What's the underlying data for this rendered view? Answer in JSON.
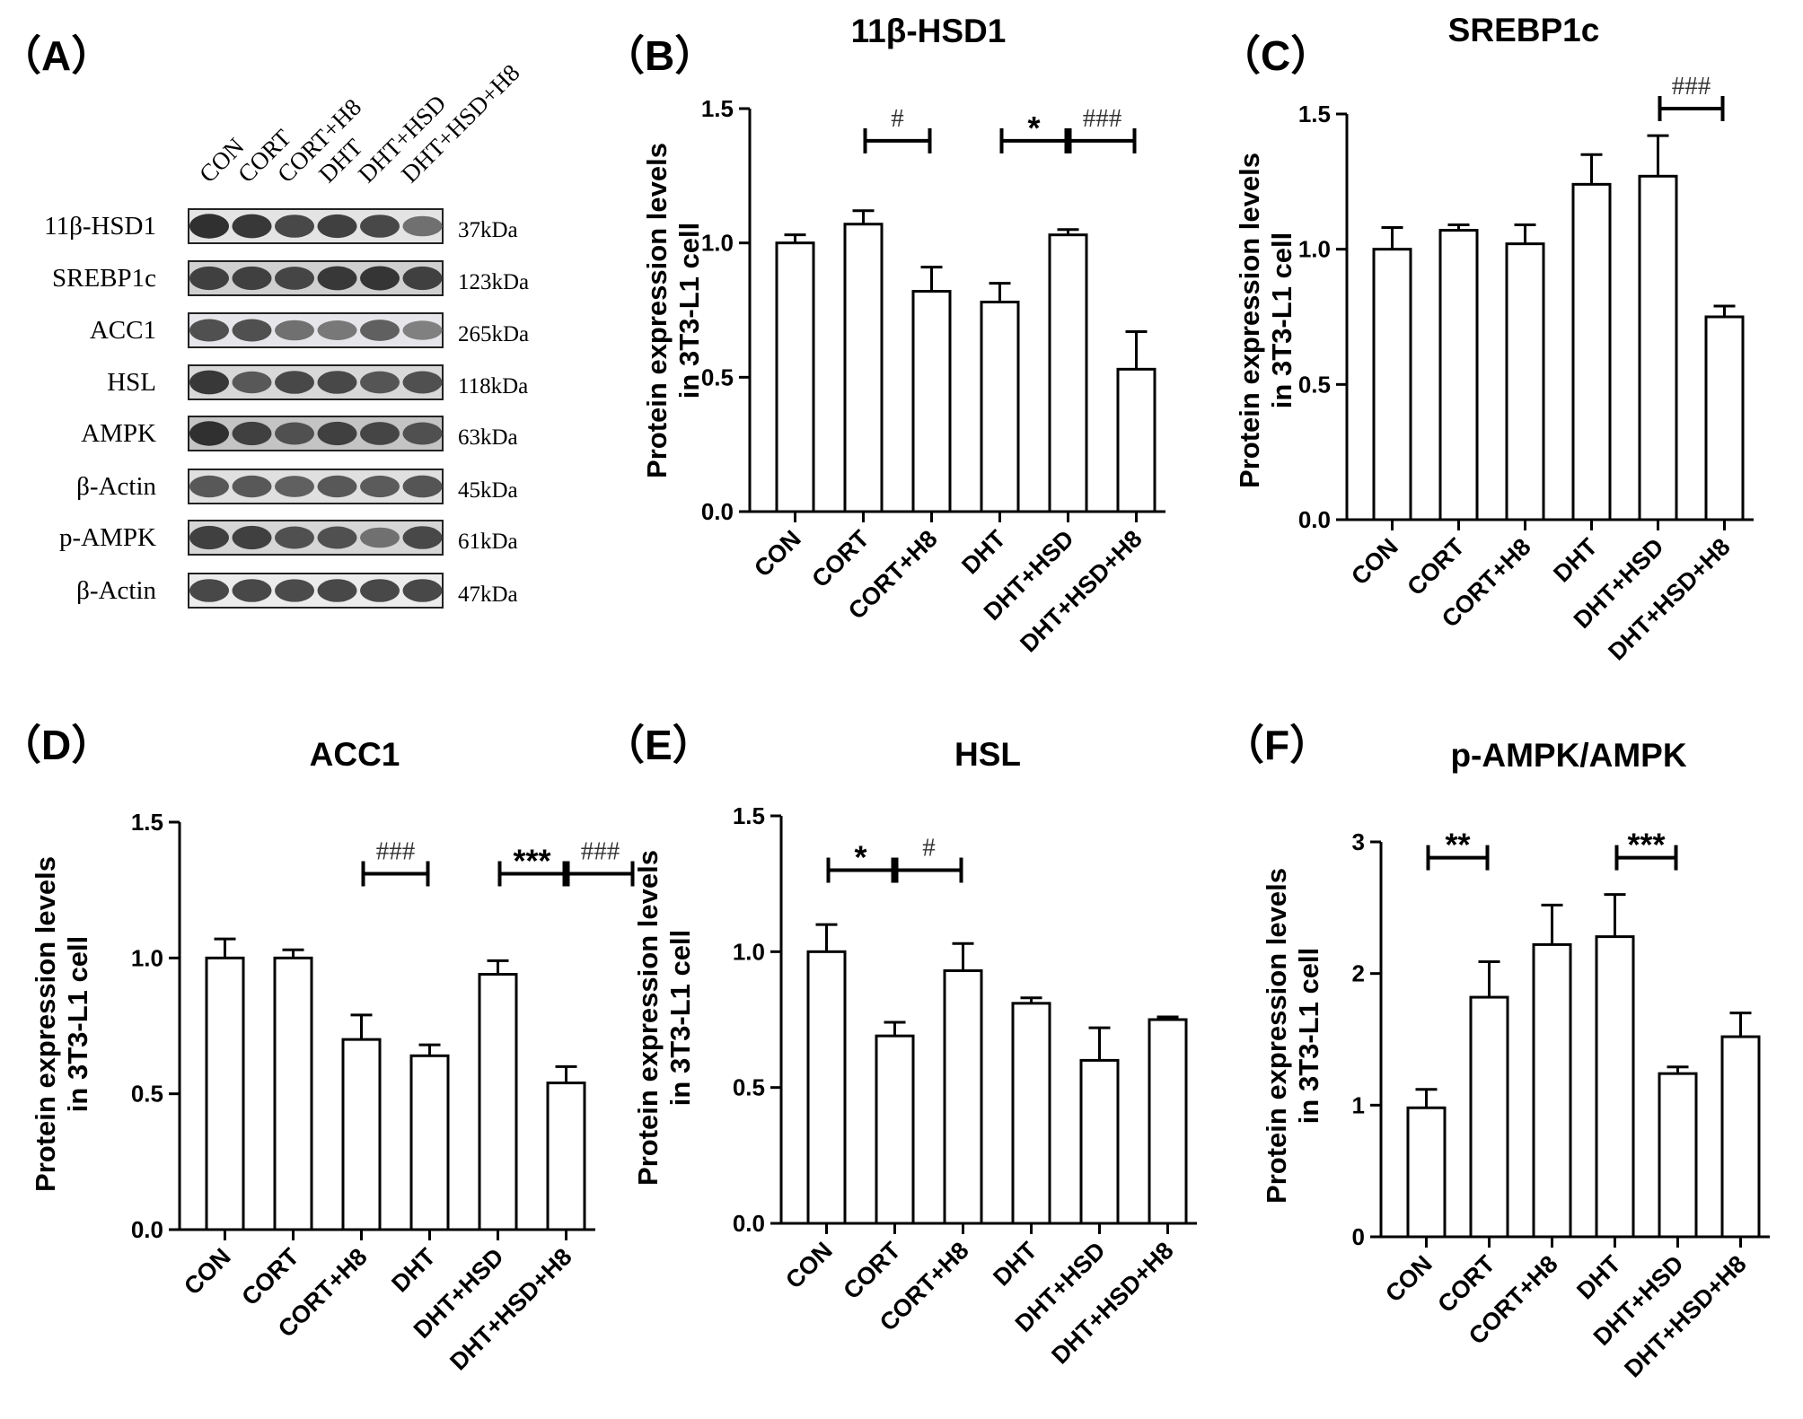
{
  "figure": {
    "panel_labels": [
      "（A）",
      "（B）",
      "（C）",
      "（D）",
      "（E）",
      "（F）"
    ]
  },
  "western_blot": {
    "lanes": [
      "CON",
      "CORT",
      "CORT+H8",
      "DHT",
      "DHT+HSD",
      "DHT+HSD+H8"
    ],
    "rows": [
      {
        "protein": "11β-HSD1",
        "size": "37kDa",
        "intensities": [
          0.95,
          0.9,
          0.8,
          0.85,
          0.8,
          0.55
        ],
        "background": "#e4e4e4"
      },
      {
        "protein": "SREBP1c",
        "size": "123kDa",
        "intensities": [
          0.85,
          0.85,
          0.82,
          0.9,
          0.92,
          0.85
        ],
        "background": "#d0d0d0"
      },
      {
        "protein": "ACC1",
        "size": "265kDa",
        "intensities": [
          0.75,
          0.75,
          0.55,
          0.5,
          0.65,
          0.45
        ],
        "background": "#e6e6ea"
      },
      {
        "protein": "HSL",
        "size": "118kDa",
        "intensities": [
          0.9,
          0.7,
          0.8,
          0.8,
          0.72,
          0.75
        ],
        "background": "#d8d8d8"
      },
      {
        "protein": "AMPK",
        "size": "63kDa",
        "intensities": [
          0.95,
          0.85,
          0.75,
          0.85,
          0.82,
          0.75
        ],
        "background": "#c4c4c4"
      },
      {
        "protein": "β-Actin",
        "size": "45kDa",
        "intensities": [
          0.7,
          0.7,
          0.65,
          0.7,
          0.68,
          0.72
        ],
        "background": "#e0e0e0"
      },
      {
        "protein": "p-AMPK",
        "size": "61kDa",
        "intensities": [
          0.85,
          0.85,
          0.75,
          0.75,
          0.55,
          0.8
        ],
        "background": "#d6d6d6"
      },
      {
        "protein": "β-Actin",
        "size": "47kDa",
        "intensities": [
          0.8,
          0.8,
          0.78,
          0.8,
          0.8,
          0.8
        ],
        "background": "#ececec"
      }
    ]
  },
  "chart_data": [
    {
      "type": "bar",
      "panel": "（B）",
      "title": "11β-HSD1",
      "ylabel": [
        "Protein expression levels",
        "in 3T3-L1 cell"
      ],
      "categories": [
        "CON",
        "CORT",
        "CORT+H8",
        "DHT",
        "DHT+HSD",
        "DHT+HSD+H8"
      ],
      "values": [
        1.0,
        1.07,
        0.82,
        0.78,
        1.03,
        0.53
      ],
      "errors": [
        0.03,
        0.05,
        0.09,
        0.07,
        0.02,
        0.14
      ],
      "ylim": [
        0,
        1.5
      ],
      "yticks": [
        "0.0",
        "0.5",
        "1.0",
        "1.5"
      ],
      "significance": [
        {
          "from": 1,
          "to": 2,
          "label": "#",
          "y": 1.38
        },
        {
          "from": 3,
          "to": 4,
          "label": "*",
          "y": 1.38
        },
        {
          "from": 4,
          "to": 5,
          "label": "###",
          "y": 1.38
        }
      ]
    },
    {
      "type": "bar",
      "panel": "（C）",
      "title": "SREBP1c",
      "ylabel": [
        "Protein expression levels",
        "in 3T3-L1 cell"
      ],
      "categories": [
        "CON",
        "CORT",
        "CORT+H8",
        "DHT",
        "DHT+HSD",
        "DHT+HSD+H8"
      ],
      "values": [
        1.0,
        1.07,
        1.02,
        1.24,
        1.27,
        0.75
      ],
      "errors": [
        0.08,
        0.02,
        0.07,
        0.11,
        0.15,
        0.04
      ],
      "ylim": [
        0,
        1.5
      ],
      "yticks": [
        "0.0",
        "0.5",
        "1.0",
        "1.5"
      ],
      "significance": [
        {
          "from": 4,
          "to": 5,
          "label": "###",
          "y": 1.52
        }
      ]
    },
    {
      "type": "bar",
      "panel": "（D）",
      "title": "ACC1",
      "ylabel": [
        "Protein expression levels",
        "in 3T3-L1 cell"
      ],
      "categories": [
        "CON",
        "CORT",
        "CORT+H8",
        "DHT",
        "DHT+HSD",
        "DHT+HSD+H8"
      ],
      "values": [
        1.0,
        1.0,
        0.7,
        0.64,
        0.94,
        0.54
      ],
      "errors": [
        0.07,
        0.03,
        0.09,
        0.04,
        0.05,
        0.06
      ],
      "ylim": [
        0,
        1.5
      ],
      "yticks": [
        "0.0",
        "0.5",
        "1.0",
        "1.5"
      ],
      "significance": [
        {
          "from": 2,
          "to": 3,
          "label": "###",
          "y": 1.31
        },
        {
          "from": 4,
          "to": 5,
          "label": "***",
          "y": 1.31
        },
        {
          "from": 5,
          "to": 6,
          "label": "###",
          "y": 1.31
        }
      ]
    },
    {
      "type": "bar",
      "panel": "（E）",
      "title": "HSL",
      "ylabel": [
        "Protein expression levels",
        "in 3T3-L1 cell"
      ],
      "categories": [
        "CON",
        "CORT",
        "CORT+H8",
        "DHT",
        "DHT+HSD",
        "DHT+HSD+H8"
      ],
      "values": [
        1.0,
        0.69,
        0.93,
        0.81,
        0.6,
        0.75
      ],
      "errors": [
        0.1,
        0.05,
        0.1,
        0.02,
        0.12,
        0.01
      ],
      "ylim": [
        0,
        1.5
      ],
      "yticks": [
        "0.0",
        "0.5",
        "1.0",
        "1.5"
      ],
      "significance": [
        {
          "from": 0,
          "to": 1,
          "label": "*",
          "y": 1.3
        },
        {
          "from": 1,
          "to": 2,
          "label": "#",
          "y": 1.3
        }
      ]
    },
    {
      "type": "bar",
      "panel": "（F）",
      "title": "p-AMPK/AMPK",
      "ylabel": [
        "Protein expression levels",
        "in 3T3-L1 cell"
      ],
      "categories": [
        "CON",
        "CORT",
        "CORT+H8",
        "DHT",
        "DHT+HSD",
        "DHT+HSD+H8"
      ],
      "values": [
        0.98,
        1.82,
        2.22,
        2.28,
        1.24,
        1.52
      ],
      "errors": [
        0.14,
        0.27,
        0.3,
        0.32,
        0.05,
        0.18
      ],
      "ylim": [
        0,
        3
      ],
      "yticks": [
        "0",
        "1",
        "2",
        "3"
      ],
      "significance": [
        {
          "from": 0,
          "to": 1,
          "label": "**",
          "y": 2.88
        },
        {
          "from": 3,
          "to": 4,
          "label": "***",
          "y": 2.88
        }
      ]
    }
  ]
}
